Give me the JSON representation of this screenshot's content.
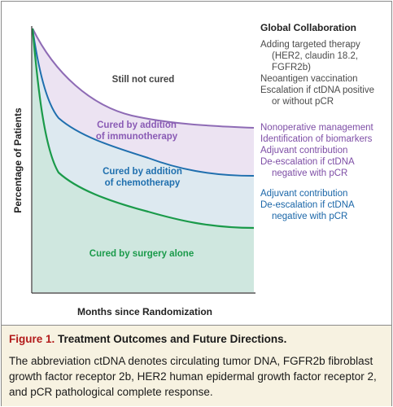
{
  "diagram": {
    "y_axis_label": "Percentage of Patients",
    "x_axis_label": "Months since Randomization",
    "regions": {
      "top": "Still not cured",
      "immuno": [
        "Cured by addition",
        "of immunotherapy"
      ],
      "chemo": [
        "Cured by addition",
        "of chemotherapy"
      ],
      "surgery": "Cured by surgery alone"
    },
    "colors": {
      "immuno_line": "#8e6bb5",
      "immuno_fill": "#ece3f2",
      "chemo_line": "#1f6fae",
      "chemo_fill": "#dde9f0",
      "surgery_line": "#1a9a4a",
      "surgery_fill": "#cfe7df",
      "label_immuno": "#8a5bb5",
      "label_chemo": "#1f6fae",
      "label_surgery": "#1a9a4a"
    }
  },
  "side_panel": {
    "heading": "Global Collaboration",
    "top_group": [
      "Adding targeted therapy",
      "(HER2, claudin 18.2,",
      "FGFR2b)",
      "Neoantigen vaccination",
      "Escalation if ctDNA positive",
      "or without pCR"
    ],
    "purple_group": [
      "Nonoperative management",
      "Identification of biomarkers",
      "Adjuvant contribution",
      "De-escalation if ctDNA",
      "negative with pCR"
    ],
    "blue_group": [
      "Adjuvant contribution",
      "De-escalation if ctDNA",
      "negative with pCR"
    ]
  },
  "caption": {
    "figure_number": "Figure 1.",
    "title": "Treatment Outcomes and Future Directions.",
    "lines": [
      "The abbreviation ctDNA denotes circulating tumor DNA, FGFR2b fibroblast",
      "growth factor receptor 2b, HER2 human epidermal growth factor receptor 2,",
      "and pCR pathological complete response."
    ]
  }
}
